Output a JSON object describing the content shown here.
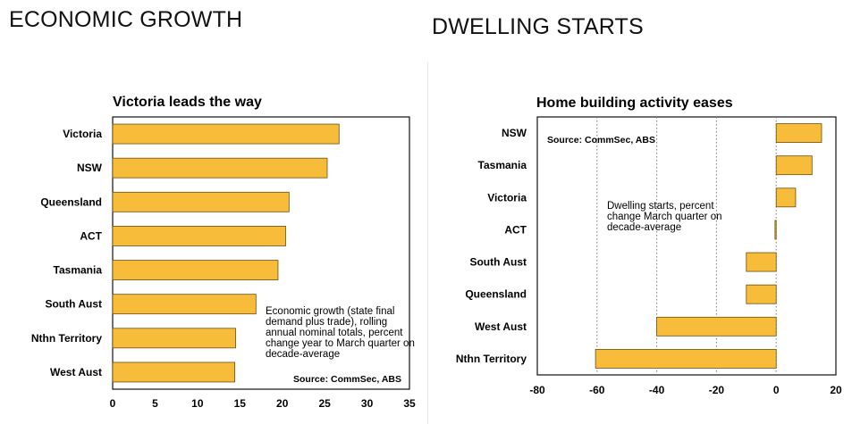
{
  "headers": {
    "left": "ECONOMIC GROWTH",
    "right": "DWELLING STARTS"
  },
  "chart_data": [
    {
      "type": "bar",
      "orientation": "horizontal",
      "title": "Victoria leads the way",
      "categories": [
        "Victoria",
        "NSW",
        "Queensland",
        "ACT",
        "Tasmania",
        "South Aust",
        "Nthn Territory",
        "West Aust"
      ],
      "values": [
        26.7,
        25.3,
        20.8,
        20.4,
        19.5,
        16.9,
        14.5,
        14.4
      ],
      "xlim": [
        0,
        35
      ],
      "xticks": [
        "0",
        "5",
        "10",
        "15",
        "20",
        "25",
        "30",
        "35"
      ],
      "annotation": "Economic growth (state final demand plus trade), rolling annual nominal totals, percent change year to March quarter on decade-average",
      "source": "Source: CommSec, ABS",
      "bar_color": "#f7bd3a",
      "grid": false
    },
    {
      "type": "bar",
      "orientation": "horizontal",
      "title": "Home building activity eases",
      "categories": [
        "NSW",
        "Tasmania",
        "Victoria",
        "ACT",
        "South Aust",
        "Queensland",
        "West Aust",
        "Nthn Territory"
      ],
      "values": [
        15.2,
        12.0,
        6.5,
        -0.4,
        -10.0,
        -10.0,
        -40.0,
        -60.5
      ],
      "xlim": [
        -80,
        20
      ],
      "xticks": [
        "-80",
        "-60",
        "-40",
        "-20",
        "0",
        "20"
      ],
      "annotation": "Dwelling starts, percent change March quarter on decade-average",
      "source": "Source: CommSec, ABS",
      "bar_color": "#f7bd3a",
      "grid": true
    }
  ]
}
